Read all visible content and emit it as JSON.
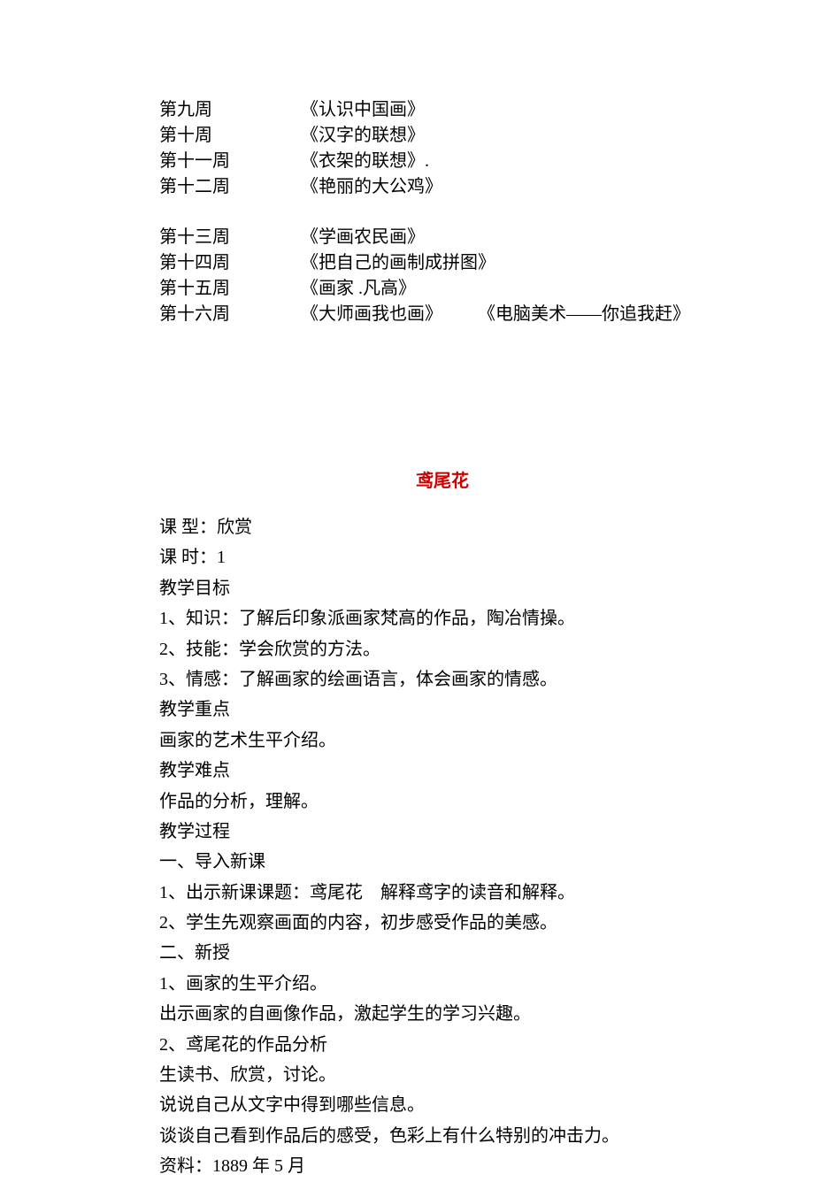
{
  "schedule_block1": [
    {
      "week": "第九周",
      "lesson": "《认识中国画》"
    },
    {
      "week": "第十周",
      "lesson": "《汉字的联想》"
    },
    {
      "week": "第十一周",
      "lesson": "《衣架的联想》."
    },
    {
      "week": "第十二周",
      "lesson": "《艳丽的大公鸡》"
    }
  ],
  "schedule_block2": [
    {
      "week": "第十三周",
      "lesson": "《学画农民画》",
      "extra": ""
    },
    {
      "week": "第十四周",
      "lesson": "《把自己的画制成拼图》",
      "extra": ""
    },
    {
      "week": "第十五周",
      "lesson": "《画家 .凡高》",
      "extra": ""
    },
    {
      "week": "第十六周",
      "lesson": "《大师画我也画》",
      "extra": "《电脑美术——你追我赶》"
    }
  ],
  "title": "鸢尾花",
  "content_lines": [
    "课 型：欣赏",
    "课 时：1",
    "教学目标",
    "1、知识：了解后印象派画家梵高的作品，陶冶情操。",
    "2、技能：学会欣赏的方法。",
    "3、情感：了解画家的绘画语言，体会画家的情感。",
    "教学重点",
    "画家的艺术生平介绍。",
    "教学难点",
    "作品的分析，理解。",
    "教学过程",
    "一、导入新课",
    "1、出示新课课题：鸢尾花　解释鸢字的读音和解释。",
    "2、学生先观察画面的内容，初步感受作品的美感。",
    "二、新授",
    "1、画家的生平介绍。",
    "出示画家的自画像作品，激起学生的学习兴趣。",
    "2、鸢尾花的作品分析",
    "生读书、欣赏，讨论。",
    "说说自己从文字中得到哪些信息。",
    "谈谈自己看到作品后的感受，色彩上有什么特别的冲击力。",
    "资料：1889 年 5 月"
  ],
  "colors": {
    "background": "#ffffff",
    "text": "#000000",
    "title": "#cc0000"
  },
  "typography": {
    "base_fontsize": 20,
    "title_fontsize": 20,
    "title_fontweight": "bold",
    "font_family": "SimSun"
  }
}
